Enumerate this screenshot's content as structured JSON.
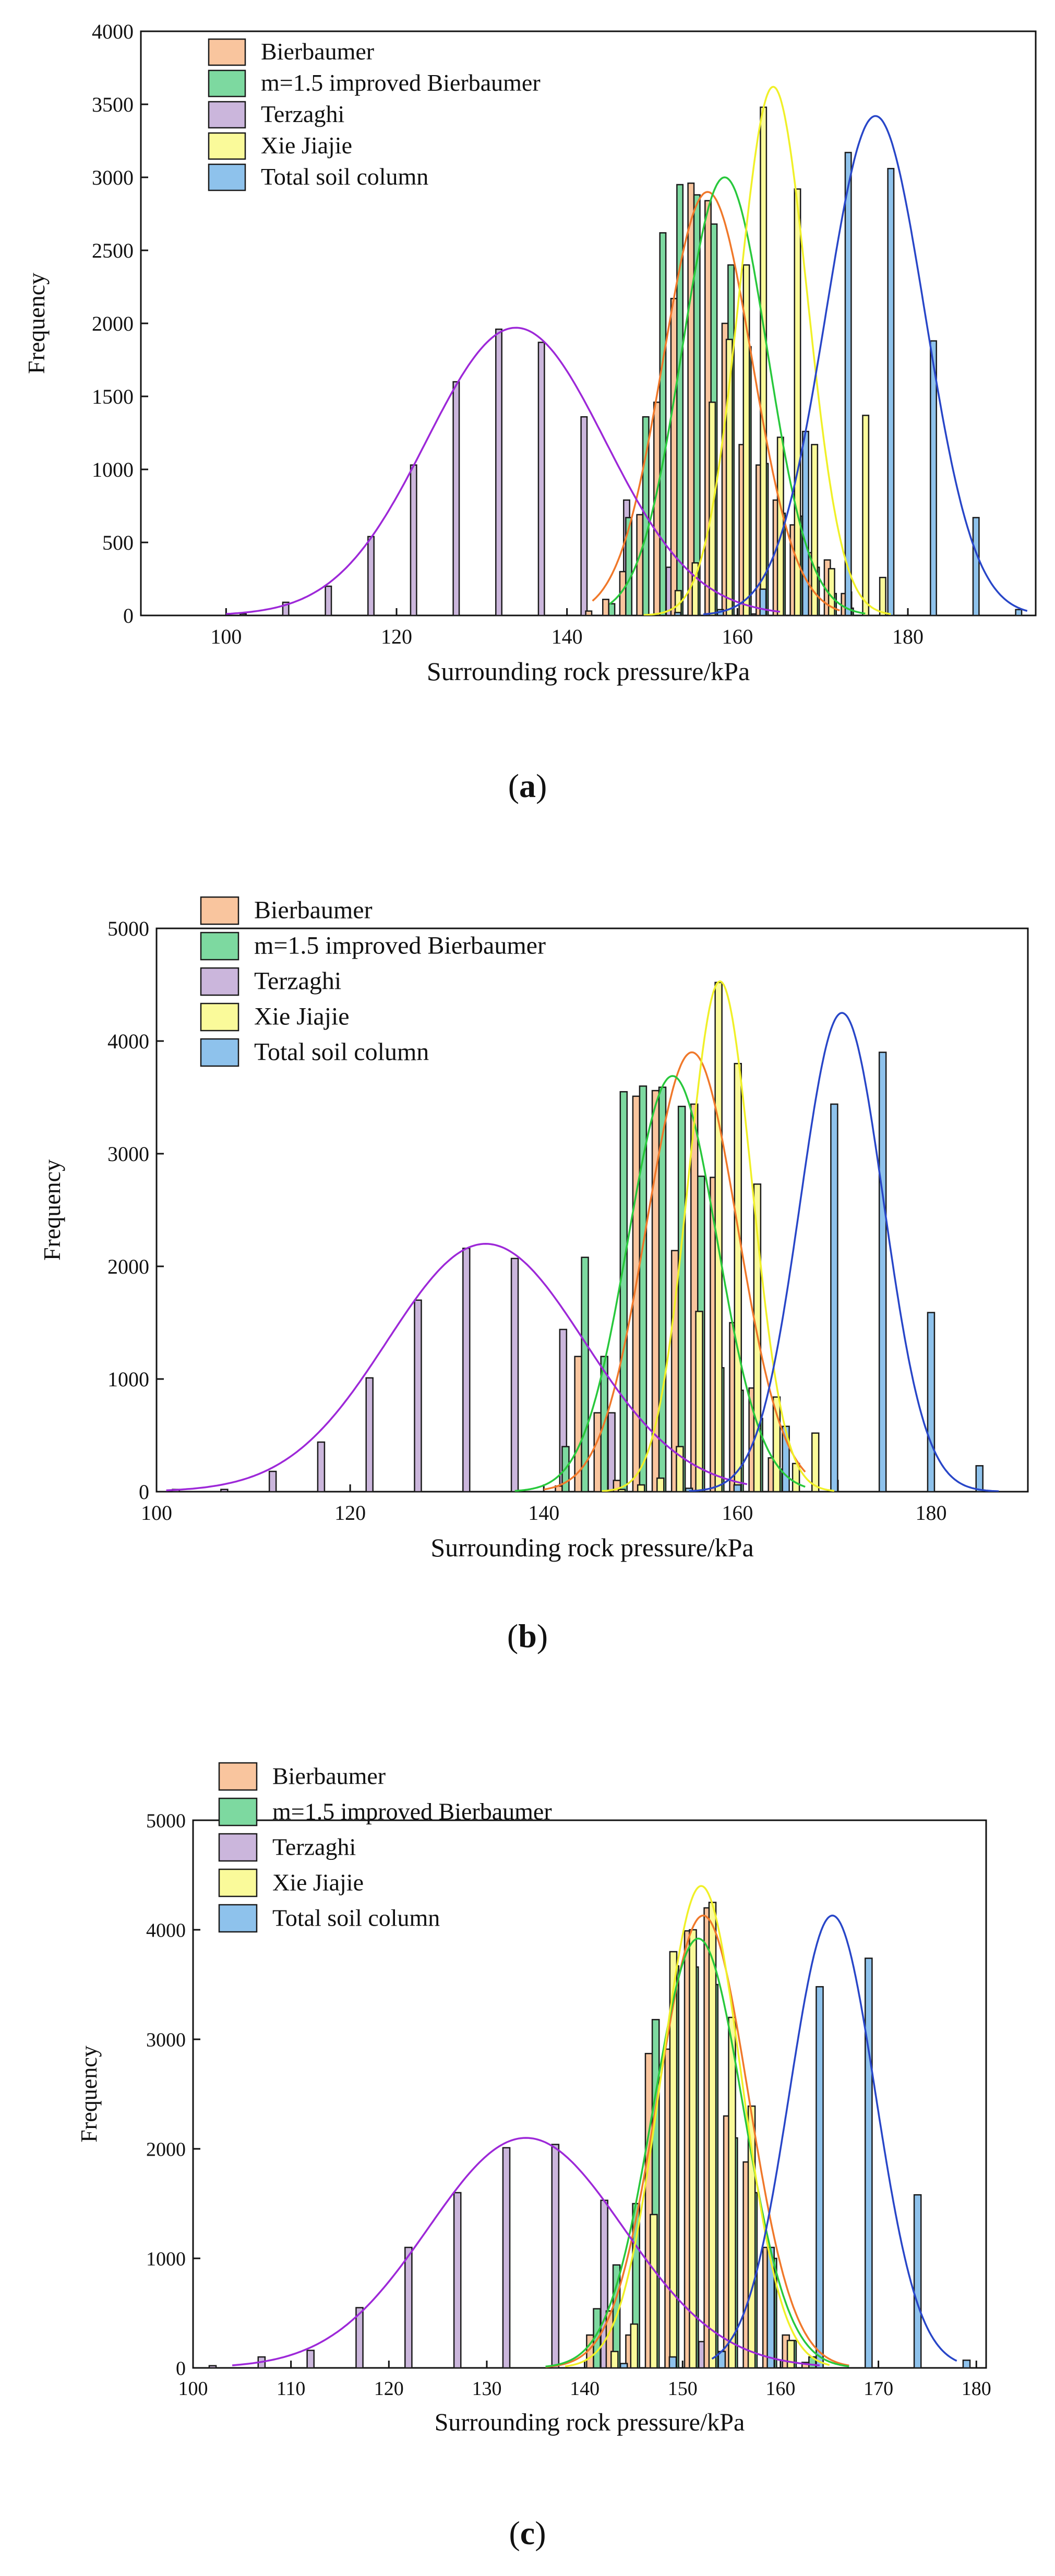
{
  "colors": {
    "Bierbaumer": {
      "fill": "#f9c59e",
      "line": "#f0782a"
    },
    "m=1.5 improved Bierbaumer": {
      "fill": "#7dd9a0",
      "line": "#28c83c"
    },
    "Terzaghi": {
      "fill": "#cbb6dc",
      "line": "#9d28d8"
    },
    "Xie Jiajie": {
      "fill": "#fafa9a",
      "line": "#f0f028"
    },
    "Total soil column": {
      "fill": "#8ec2ec",
      "line": "#2846c8"
    }
  },
  "chart_data": [
    {
      "type": "bar",
      "panel_label": "a",
      "xlabel": "Surrounding rock pressure/kPa",
      "ylabel": "Frequency",
      "xlim": [
        90,
        195
      ],
      "ylim": [
        0,
        4000
      ],
      "xticks": [
        100,
        120,
        140,
        160,
        180
      ],
      "yticks": [
        0,
        500,
        1000,
        1500,
        2000,
        2500,
        3000,
        3500,
        4000
      ],
      "legend": "top-left",
      "series": [
        {
          "name": "Bierbaumer",
          "x": [
            143,
            145,
            147,
            149,
            151,
            153,
            155,
            157,
            159,
            161,
            163,
            165,
            167,
            169,
            171,
            173
          ],
          "values": [
            30,
            110,
            300,
            690,
            1460,
            2170,
            2960,
            2840,
            2000,
            1170,
            1030,
            790,
            620,
            430,
            380,
            150
          ]
        },
        {
          "name": "m=1.5 improved Bierbaumer",
          "x": [
            145,
            147,
            149,
            151,
            153,
            155,
            157,
            159,
            161,
            163,
            165,
            167,
            169,
            171,
            173
          ],
          "values": [
            80,
            670,
            1360,
            2620,
            2950,
            2880,
            2680,
            2400,
            1840,
            1040,
            700,
            680,
            330,
            150,
            50
          ]
        },
        {
          "name": "Terzaghi",
          "x": [
            102,
            107,
            112,
            117,
            122,
            127,
            132,
            137,
            142,
            147,
            152,
            157,
            162
          ],
          "values": [
            10,
            90,
            200,
            540,
            1030,
            1600,
            1960,
            1870,
            1360,
            790,
            330,
            70,
            10
          ]
        },
        {
          "name": "Xie Jiajie",
          "x": [
            153,
            155,
            157,
            159,
            161,
            163,
            165,
            167,
            169,
            171,
            173,
            175,
            177
          ],
          "values": [
            170,
            360,
            1460,
            1890,
            2400,
            3480,
            1220,
            2920,
            1170,
            320,
            160,
            1370,
            260
          ]
        },
        {
          "name": "Total soil column",
          "x": [
            153,
            158,
            163,
            168,
            173,
            178,
            183,
            188,
            193
          ],
          "values": [
            20,
            40,
            180,
            1260,
            3170,
            3060,
            1880,
            670,
            40
          ]
        }
      ],
      "curves": [
        {
          "name": "Bierbaumer",
          "mean": 156.5,
          "sd": 5.2,
          "peak": 2900,
          "range": [
            143,
            172
          ]
        },
        {
          "name": "m=1.5 improved Bierbaumer",
          "mean": 158.5,
          "sd": 5.0,
          "peak": 3000,
          "range": [
            145,
            175
          ]
        },
        {
          "name": "Terzaghi",
          "mean": 134,
          "sd": 10.5,
          "peak": 1970,
          "range": [
            100,
            165
          ]
        },
        {
          "name": "Xie Jiajie",
          "mean": 164.2,
          "sd": 4.0,
          "peak": 3620,
          "range": [
            149,
            178
          ]
        },
        {
          "name": "Total soil column",
          "mean": 176.2,
          "sd": 5.8,
          "peak": 3420,
          "range": [
            156,
            194
          ]
        }
      ]
    },
    {
      "type": "bar",
      "panel_label": "b",
      "xlabel": "Surrounding rock pressure/kPa",
      "ylabel": "Frequency",
      "xlim": [
        100,
        190
      ],
      "ylim": [
        0,
        5000
      ],
      "xticks": [
        100,
        120,
        140,
        160,
        180
      ],
      "yticks": [
        0,
        1000,
        2000,
        3000,
        4000,
        5000
      ],
      "legend": "top-left",
      "series": [
        {
          "name": "Bierbaumer",
          "x": [
            142,
            144,
            146,
            148,
            150,
            152,
            154,
            156,
            158,
            160,
            162,
            164
          ],
          "values": [
            50,
            1200,
            700,
            100,
            3510,
            3560,
            2140,
            3440,
            2790,
            1500,
            920,
            300
          ]
        },
        {
          "name": "m=1.5 improved Bierbaumer",
          "x": [
            142,
            144,
            146,
            148,
            150,
            152,
            154,
            156,
            158,
            160,
            162,
            164
          ],
          "values": [
            400,
            2080,
            1200,
            3550,
            3600,
            3590,
            3420,
            2800,
            1100,
            900,
            650,
            200
          ]
        },
        {
          "name": "Terzaghi",
          "x": [
            102,
            107,
            112,
            117,
            122,
            127,
            132,
            137,
            142,
            147,
            152
          ],
          "values": [
            20,
            20,
            180,
            440,
            1010,
            1700,
            2160,
            2070,
            1440,
            700,
            260
          ]
        },
        {
          "name": "Xie Jiajie",
          "x": [
            148,
            150,
            152,
            154,
            156,
            158,
            160,
            162,
            164,
            166,
            168,
            170
          ],
          "values": [
            20,
            60,
            120,
            400,
            1600,
            4520,
            3800,
            2730,
            840,
            250,
            520,
            100
          ]
        },
        {
          "name": "Total soil column",
          "x": [
            155,
            160,
            165,
            170,
            175,
            180,
            185
          ],
          "values": [
            30,
            60,
            580,
            3440,
            3900,
            1590,
            230
          ]
        }
      ],
      "curves": [
        {
          "name": "Bierbaumer",
          "mean": 155.3,
          "sd": 4.7,
          "peak": 3900,
          "range": [
            140,
            167
          ]
        },
        {
          "name": "m=1.5 improved Bierbaumer",
          "mean": 153.3,
          "sd": 4.6,
          "peak": 3690,
          "range": [
            137,
            167
          ]
        },
        {
          "name": "Terzaghi",
          "mean": 134,
          "sd": 10.2,
          "peak": 2200,
          "range": [
            101,
            161
          ]
        },
        {
          "name": "Xie Jiajie",
          "mean": 158.2,
          "sd": 3.3,
          "peak": 4530,
          "range": [
            146,
            170
          ]
        },
        {
          "name": "Total soil column",
          "mean": 170.8,
          "sd": 4.3,
          "peak": 4250,
          "range": [
            155,
            187
          ]
        }
      ]
    },
    {
      "type": "bar",
      "panel_label": "c",
      "xlabel": "Surrounding rock pressure/kPa",
      "ylabel": "Frequency",
      "xlim": [
        100,
        181
      ],
      "ylim": [
        0,
        5000
      ],
      "xticks": [
        100,
        110,
        120,
        130,
        140,
        150,
        160,
        170,
        180
      ],
      "yticks": [
        0,
        1000,
        2000,
        3000,
        4000,
        5000
      ],
      "legend": "top-left",
      "series": [
        {
          "name": "Bierbaumer",
          "x": [
            141,
            143,
            145,
            147,
            149,
            151,
            153,
            155,
            157,
            159,
            161,
            163
          ],
          "values": [
            300,
            520,
            300,
            2870,
            2910,
            3990,
            4200,
            2300,
            1880,
            1100,
            300,
            50
          ]
        },
        {
          "name": "m=1.5 improved Bierbaumer",
          "x": [
            141,
            143,
            145,
            147,
            149,
            151,
            153,
            155,
            157,
            159,
            161,
            163
          ],
          "values": [
            540,
            940,
            1500,
            3180,
            3670,
            3660,
            3500,
            2100,
            1600,
            1000,
            250,
            100
          ]
        },
        {
          "name": "Terzaghi",
          "x": [
            102,
            107,
            112,
            117,
            122,
            127,
            132,
            137,
            142,
            147,
            152
          ],
          "values": [
            20,
            100,
            160,
            550,
            1100,
            1600,
            2010,
            2040,
            1530,
            780,
            240
          ]
        },
        {
          "name": "Xie Jiajie",
          "x": [
            143,
            145,
            147,
            149,
            151,
            153,
            155,
            157,
            159,
            161
          ],
          "values": [
            150,
            400,
            1400,
            3800,
            4000,
            4250,
            3200,
            2390,
            900,
            250
          ]
        },
        {
          "name": "Total soil column",
          "x": [
            144,
            149,
            154,
            159,
            164,
            169,
            174,
            179
          ],
          "values": [
            40,
            100,
            150,
            1100,
            3480,
            3740,
            1580,
            70
          ]
        }
      ],
      "curves": [
        {
          "name": "Bierbaumer",
          "mean": 152.1,
          "sd": 4.6,
          "peak": 4130,
          "range": [
            136,
            167
          ]
        },
        {
          "name": "m=1.5 improved Bierbaumer",
          "mean": 151.6,
          "sd": 4.6,
          "peak": 3920,
          "range": [
            136,
            167
          ]
        },
        {
          "name": "Terzaghi",
          "mean": 134,
          "sd": 10.0,
          "peak": 2100,
          "range": [
            104,
            164
          ]
        },
        {
          "name": "Xie Jiajie",
          "mean": 151.9,
          "sd": 4.1,
          "peak": 4400,
          "range": [
            138,
            165
          ]
        },
        {
          "name": "Total soil column",
          "mean": 165.3,
          "sd": 4.4,
          "peak": 4130,
          "range": [
            153,
            178
          ]
        }
      ]
    }
  ]
}
